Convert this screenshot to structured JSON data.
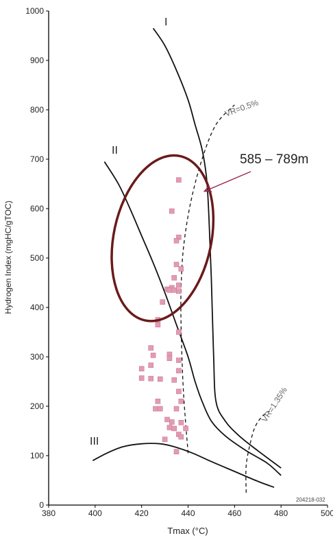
{
  "chart_data": {
    "type": "scatter",
    "xlabel": "Tmax (°C)",
    "ylabel": "Hydrogen Index (mgHC/gTOC)",
    "xlim": [
      380,
      500
    ],
    "ylim": [
      0,
      1000
    ],
    "x_ticks": [
      380,
      400,
      420,
      440,
      460,
      480,
      500
    ],
    "y_ticks": [
      0,
      100,
      200,
      300,
      400,
      500,
      600,
      700,
      800,
      900,
      1000
    ],
    "grid": false,
    "marker_color": "#e39bb4",
    "marker_edge": "#c77a97",
    "ellipse_color": "#6b1a1a",
    "arrow_color": "#9b2a55",
    "points": [
      {
        "x": 436,
        "y": 658
      },
      {
        "x": 433,
        "y": 595
      },
      {
        "x": 436,
        "y": 542
      },
      {
        "x": 435,
        "y": 535
      },
      {
        "x": 435,
        "y": 487
      },
      {
        "x": 437,
        "y": 478
      },
      {
        "x": 434,
        "y": 460
      },
      {
        "x": 436,
        "y": 445
      },
      {
        "x": 433,
        "y": 440
      },
      {
        "x": 431,
        "y": 437
      },
      {
        "x": 432,
        "y": 435
      },
      {
        "x": 434,
        "y": 435
      },
      {
        "x": 436,
        "y": 433
      },
      {
        "x": 429,
        "y": 411
      },
      {
        "x": 427,
        "y": 375
      },
      {
        "x": 427,
        "y": 365
      },
      {
        "x": 436,
        "y": 350
      },
      {
        "x": 424,
        "y": 318
      },
      {
        "x": 425,
        "y": 303
      },
      {
        "x": 432,
        "y": 305
      },
      {
        "x": 432,
        "y": 297
      },
      {
        "x": 436,
        "y": 293
      },
      {
        "x": 424,
        "y": 283
      },
      {
        "x": 420,
        "y": 276
      },
      {
        "x": 436,
        "y": 272
      },
      {
        "x": 420,
        "y": 257
      },
      {
        "x": 424,
        "y": 256
      },
      {
        "x": 428,
        "y": 255
      },
      {
        "x": 434,
        "y": 253
      },
      {
        "x": 436,
        "y": 230
      },
      {
        "x": 437,
        "y": 210
      },
      {
        "x": 427,
        "y": 210
      },
      {
        "x": 426,
        "y": 195
      },
      {
        "x": 428,
        "y": 195
      },
      {
        "x": 435,
        "y": 195
      },
      {
        "x": 431,
        "y": 173
      },
      {
        "x": 433,
        "y": 168
      },
      {
        "x": 437,
        "y": 167
      },
      {
        "x": 432,
        "y": 157
      },
      {
        "x": 434,
        "y": 155
      },
      {
        "x": 439,
        "y": 155
      },
      {
        "x": 436,
        "y": 143
      },
      {
        "x": 437,
        "y": 138
      },
      {
        "x": 430,
        "y": 133
      },
      {
        "x": 435,
        "y": 108
      }
    ],
    "kerogen_curves": [
      {
        "name": "I",
        "points": [
          [
            425,
            965
          ],
          [
            430,
            930
          ],
          [
            435,
            880
          ],
          [
            440,
            820
          ],
          [
            443,
            770
          ],
          [
            446,
            720
          ],
          [
            448,
            660
          ],
          [
            449,
            580
          ],
          [
            450,
            460
          ],
          [
            451,
            300
          ],
          [
            452,
            210
          ],
          [
            456,
            170
          ],
          [
            462,
            140
          ],
          [
            470,
            110
          ],
          [
            480,
            75
          ]
        ]
      },
      {
        "name": "II",
        "points": [
          [
            404,
            695
          ],
          [
            410,
            650
          ],
          [
            415,
            600
          ],
          [
            420,
            545
          ],
          [
            425,
            490
          ],
          [
            430,
            430
          ],
          [
            435,
            365
          ],
          [
            440,
            300
          ],
          [
            443,
            250
          ],
          [
            446,
            210
          ],
          [
            450,
            170
          ],
          [
            456,
            140
          ],
          [
            465,
            110
          ],
          [
            474,
            85
          ],
          [
            480,
            60
          ]
        ]
      },
      {
        "name": "III",
        "points": [
          [
            399,
            90
          ],
          [
            405,
            105
          ],
          [
            412,
            118
          ],
          [
            420,
            124
          ],
          [
            428,
            124
          ],
          [
            434,
            118
          ],
          [
            442,
            105
          ],
          [
            450,
            88
          ],
          [
            460,
            68
          ],
          [
            470,
            48
          ],
          [
            477,
            36
          ]
        ]
      }
    ],
    "vr_curves": [
      {
        "name": "VR=0.5%",
        "points": [
          [
            440,
            105
          ],
          [
            438,
            230
          ],
          [
            437,
            360
          ],
          [
            437,
            440
          ],
          [
            438,
            520
          ],
          [
            441,
            610
          ],
          [
            446,
            700
          ],
          [
            452,
            770
          ],
          [
            460,
            810
          ]
        ]
      },
      {
        "name": "VR=1.35%",
        "points": [
          [
            465,
            25
          ],
          [
            465,
            80
          ],
          [
            467,
            130
          ],
          [
            469,
            160
          ],
          [
            472,
            180
          ],
          [
            475,
            190
          ]
        ]
      }
    ],
    "annotation_ellipse": {
      "cx": 429,
      "cy": 540,
      "rx": 21,
      "ry": 170,
      "angle_deg": 12
    },
    "annotation_arrow": {
      "from": [
        467,
        675
      ],
      "to": [
        447,
        635
      ]
    }
  },
  "labels": {
    "curve_I": "I",
    "curve_II": "II",
    "curve_III": "III",
    "vr_05": "VR=0.5%",
    "vr_135": "VR=1.35%",
    "depth_range": "585 – 789m",
    "figure_id": "204218-032"
  }
}
